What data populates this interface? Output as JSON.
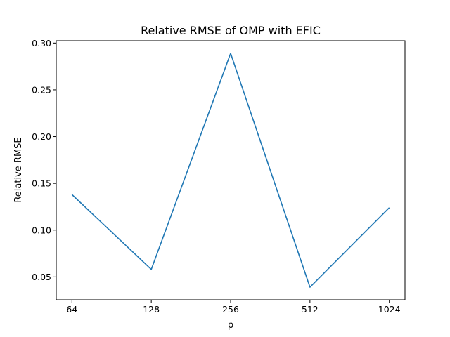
{
  "chart_data": {
    "type": "line",
    "title": "Relative RMSE of OMP with EFIC",
    "xlabel": "p",
    "ylabel": "Relative RMSE",
    "categories": [
      "64",
      "128",
      "256",
      "512",
      "1024"
    ],
    "series": [
      {
        "values": [
          0.138,
          0.058,
          0.289,
          0.039,
          0.124
        ]
      }
    ],
    "ylim": [
      0.0255,
      0.3025
    ],
    "yticks": [
      0.05,
      0.1,
      0.15,
      0.2,
      0.25,
      0.3
    ],
    "ytick_labels": [
      "0.05",
      "0.10",
      "0.15",
      "0.20",
      "0.25",
      "0.30"
    ],
    "grid": false,
    "line_color": "#1f77b4"
  }
}
